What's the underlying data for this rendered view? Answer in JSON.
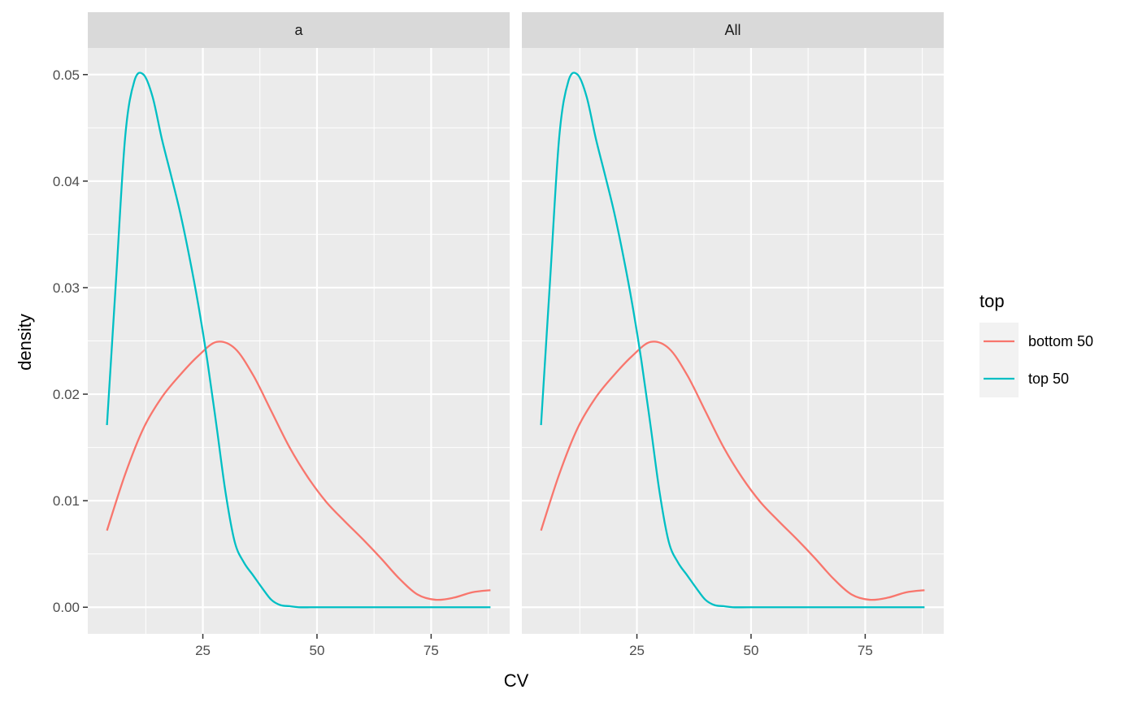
{
  "chart_data": {
    "type": "line",
    "facet_by": "panel",
    "panels": [
      {
        "strip_label": "a",
        "series": [
          {
            "name": "bottom 50",
            "color": "#F8766D",
            "x": [
              4,
              8,
              12,
              16,
              20,
              24,
              28,
              32,
              36,
              40,
              44,
              48,
              52,
              56,
              60,
              64,
              68,
              72,
              76,
              80,
              84,
              88
            ],
            "y": [
              0.0072,
              0.0125,
              0.0168,
              0.0197,
              0.0218,
              0.0236,
              0.0249,
              0.0243,
              0.0218,
              0.0184,
              0.015,
              0.0122,
              0.0099,
              0.0081,
              0.0064,
              0.0046,
              0.0027,
              0.0012,
              0.0007,
              0.0009,
              0.0014,
              0.0016
            ]
          },
          {
            "name": "top 50",
            "color": "#00BFC4",
            "x": [
              4,
              6,
              8,
              10,
              12,
              14,
              16,
              18,
              20,
              22,
              24,
              26,
              28,
              30,
              32,
              34,
              36,
              38,
              40,
              42,
              44,
              46,
              50,
              60,
              70,
              80,
              88
            ],
            "y": [
              0.0171,
              0.0308,
              0.0442,
              0.0494,
              0.05,
              0.0479,
              0.044,
              0.0406,
              0.0371,
              0.033,
              0.0284,
              0.0231,
              0.017,
              0.0107,
              0.0061,
              0.0042,
              0.003,
              0.0018,
              0.0007,
              0.0002,
              0.0001,
              0.0,
              0.0,
              0.0,
              0.0,
              0.0,
              0.0
            ]
          }
        ]
      },
      {
        "strip_label": "All",
        "series": [
          {
            "name": "bottom 50",
            "color": "#F8766D",
            "x": [
              4,
              8,
              12,
              16,
              20,
              24,
              28,
              32,
              36,
              40,
              44,
              48,
              52,
              56,
              60,
              64,
              68,
              72,
              76,
              80,
              84,
              88
            ],
            "y": [
              0.0072,
              0.0125,
              0.0168,
              0.0197,
              0.0218,
              0.0236,
              0.0249,
              0.0243,
              0.0218,
              0.0184,
              0.015,
              0.0122,
              0.0099,
              0.0081,
              0.0064,
              0.0046,
              0.0027,
              0.0012,
              0.0007,
              0.0009,
              0.0014,
              0.0016
            ]
          },
          {
            "name": "top 50",
            "color": "#00BFC4",
            "x": [
              4,
              6,
              8,
              10,
              12,
              14,
              16,
              18,
              20,
              22,
              24,
              26,
              28,
              30,
              32,
              34,
              36,
              38,
              40,
              42,
              44,
              46,
              50,
              60,
              70,
              80,
              88
            ],
            "y": [
              0.0171,
              0.0308,
              0.0442,
              0.0494,
              0.05,
              0.0479,
              0.044,
              0.0406,
              0.0371,
              0.033,
              0.0284,
              0.0231,
              0.017,
              0.0107,
              0.0061,
              0.0042,
              0.003,
              0.0018,
              0.0007,
              0.0002,
              0.0001,
              0.0,
              0.0,
              0.0,
              0.0,
              0.0,
              0.0
            ]
          }
        ]
      }
    ],
    "xlabel": "CV",
    "ylabel": "density",
    "xlim": [
      -0.2,
      92.2
    ],
    "ylim": [
      -0.0025,
      0.0525
    ],
    "x_ticks": [
      25,
      50,
      75
    ],
    "x_tick_labels": [
      "25",
      "50",
      "75"
    ],
    "y_ticks": [
      0,
      0.01,
      0.02,
      0.03,
      0.04,
      0.05
    ],
    "y_tick_labels": [
      "0.00",
      "0.01",
      "0.02",
      "0.03",
      "0.04",
      "0.05"
    ],
    "grid": true,
    "legend": {
      "title": "top",
      "placement": "right",
      "entries": [
        {
          "label": "bottom 50",
          "color": "#F8766D"
        },
        {
          "label": "top 50",
          "color": "#00BFC4"
        }
      ]
    },
    "colors": {
      "panel_background": "#EBEBEB",
      "strip_background": "#D9D9D9",
      "grid": "#FFFFFF",
      "legend_key_background": "#F2F2F2"
    }
  }
}
